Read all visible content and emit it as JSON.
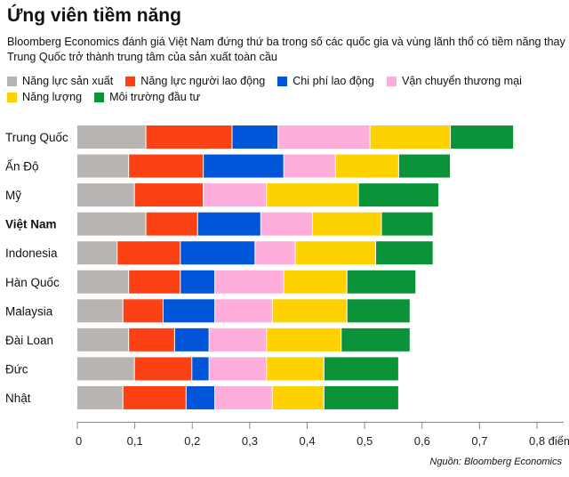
{
  "title": "Ứng viên tiềm năng",
  "subtitle": "Bloomberg Economics đánh giá Việt Nam đứng thứ ba trong số các quốc gia và vùng lãnh thổ có tiềm năng thay Trung Quốc trở thành trung tâm của sản xuất toàn cầu",
  "source": "Nguồn:  Bloomberg Economics",
  "chart_data": {
    "type": "bar",
    "orientation": "horizontal",
    "stacked": true,
    "categories": [
      "Trung Quốc",
      "Ấn Độ",
      "Mỹ",
      "Việt Nam",
      "Indonesia",
      "Hàn Quốc",
      "Malaysia",
      "Đài Loan",
      "Đức",
      "Nhật"
    ],
    "highlight_category": "Việt Nam",
    "series": [
      {
        "name": "Năng lực sản xuất",
        "color": "#b8b4b2",
        "values": [
          0.12,
          0.09,
          0.1,
          0.12,
          0.07,
          0.09,
          0.08,
          0.09,
          0.1,
          0.08
        ]
      },
      {
        "name": "Năng lực người lao động",
        "color": "#fc4214",
        "values": [
          0.15,
          0.13,
          0.12,
          0.09,
          0.11,
          0.09,
          0.07,
          0.08,
          0.1,
          0.11
        ]
      },
      {
        "name": "Chi phí lao động",
        "color": "#0055d9",
        "values": [
          0.08,
          0.14,
          0.0,
          0.11,
          0.13,
          0.06,
          0.09,
          0.06,
          0.03,
          0.05
        ]
      },
      {
        "name": "Vận chuyển thương mại",
        "color": "#ffaedc",
        "values": [
          0.16,
          0.09,
          0.11,
          0.09,
          0.07,
          0.12,
          0.1,
          0.1,
          0.1,
          0.1
        ]
      },
      {
        "name": "Năng lượng",
        "color": "#fdd200",
        "values": [
          0.14,
          0.11,
          0.16,
          0.12,
          0.14,
          0.11,
          0.13,
          0.13,
          0.1,
          0.09
        ]
      },
      {
        "name": "Môi trường đầu tư",
        "color": "#0a9339",
        "values": [
          0.11,
          0.09,
          0.14,
          0.09,
          0.1,
          0.12,
          0.11,
          0.12,
          0.13,
          0.13
        ]
      }
    ],
    "xlim": [
      0,
      0.8
    ],
    "x_ticks": [
      "0",
      "0,1",
      "0,2",
      "0,3",
      "0,4",
      "0,5",
      "0,6",
      "0,7",
      "0,8 điểm"
    ],
    "grid": false,
    "legend_position": "top-left"
  }
}
